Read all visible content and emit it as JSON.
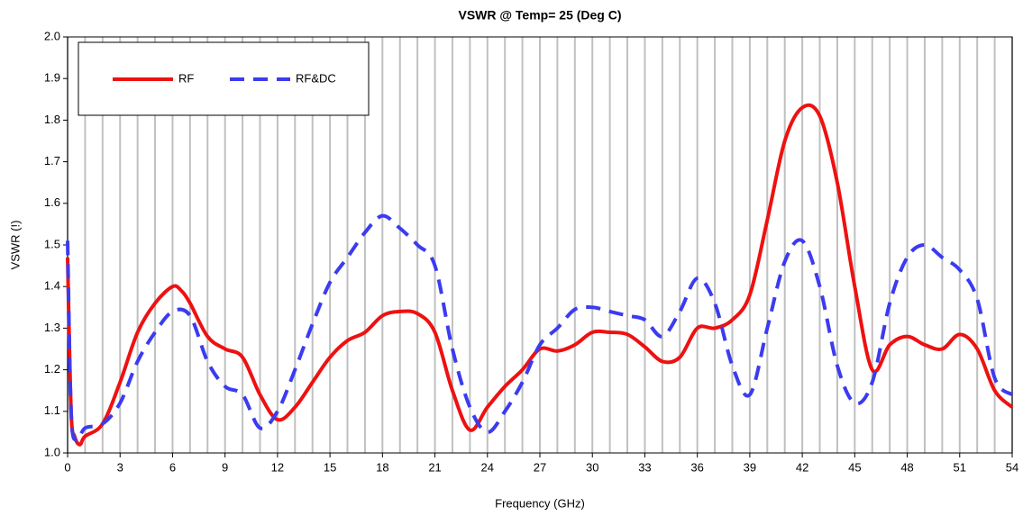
{
  "chart_data": {
    "type": "line",
    "title": "VSWR @ Temp= 25 (Deg C)",
    "x_label": "Frequency (GHz)",
    "y_label": "VSWR (!)",
    "xlim": [
      0,
      54
    ],
    "ylim": [
      1.0,
      2.0
    ],
    "xticks": [
      0,
      3,
      6,
      9,
      12,
      15,
      18,
      21,
      24,
      27,
      30,
      33,
      36,
      39,
      42,
      45,
      48,
      51,
      54
    ],
    "xgrid": [
      0,
      1,
      2,
      3,
      4,
      5,
      6,
      7,
      8,
      9,
      10,
      11,
      12,
      13,
      14,
      15,
      16,
      17,
      18,
      19,
      20,
      21,
      22,
      23,
      24,
      25,
      26,
      27,
      28,
      29,
      30,
      31,
      32,
      33,
      34,
      35,
      36,
      37,
      38,
      39,
      40,
      41,
      42,
      43,
      44,
      45,
      46,
      47,
      48,
      49,
      50,
      51,
      52,
      53,
      54
    ],
    "yticks": [
      {
        "value": 1.0,
        "label": "1.0"
      },
      1.1,
      1.2,
      1.3,
      1.4,
      1.5,
      1.6,
      1.7,
      1.8,
      1.9,
      {
        "value": 2.0,
        "label": "2.0"
      }
    ],
    "legend": "upper left",
    "series": [
      {
        "name": "RF",
        "color": "#ee1111",
        "dash": false,
        "x": [
          0,
          0.2,
          0.4,
          0.7,
          1,
          2,
          3,
          4,
          5,
          6,
          6.5,
          7,
          8,
          9,
          10,
          11,
          12,
          13,
          14,
          15,
          16,
          17,
          18,
          19,
          20,
          21,
          22,
          23,
          24,
          25,
          26,
          27,
          28,
          29,
          30,
          31,
          32,
          33,
          34,
          35,
          36,
          37,
          38,
          39,
          40,
          41,
          42,
          43,
          44,
          45,
          46,
          47,
          48,
          49,
          50,
          51,
          52,
          53,
          54
        ],
        "values": [
          1.47,
          1.1,
          1.04,
          1.02,
          1.04,
          1.07,
          1.17,
          1.29,
          1.36,
          1.4,
          1.39,
          1.36,
          1.28,
          1.25,
          1.23,
          1.14,
          1.08,
          1.11,
          1.17,
          1.23,
          1.27,
          1.29,
          1.33,
          1.34,
          1.335,
          1.29,
          1.15,
          1.055,
          1.11,
          1.16,
          1.2,
          1.25,
          1.245,
          1.26,
          1.29,
          1.29,
          1.285,
          1.255,
          1.22,
          1.23,
          1.3,
          1.3,
          1.32,
          1.38,
          1.56,
          1.75,
          1.83,
          1.81,
          1.65,
          1.4,
          1.2,
          1.26,
          1.28,
          1.26,
          1.25,
          1.285,
          1.25,
          1.15,
          1.11
        ]
      },
      {
        "name": "RF&DC",
        "color": "#3b3bf0",
        "dash": true,
        "x": [
          0,
          0.2,
          0.5,
          1,
          2,
          3,
          4,
          5,
          6,
          7,
          8,
          9,
          10,
          11,
          12,
          13,
          14,
          15,
          16,
          17,
          18,
          19,
          20,
          21,
          22,
          23,
          24,
          25,
          26,
          27,
          28,
          29,
          30,
          31,
          32,
          33,
          34,
          35,
          36,
          37,
          38,
          39,
          40,
          41,
          42,
          43,
          44,
          45,
          46,
          47,
          48,
          49,
          50,
          51,
          52,
          53,
          54
        ],
        "values": [
          1.51,
          1.1,
          1.03,
          1.06,
          1.07,
          1.12,
          1.22,
          1.29,
          1.34,
          1.33,
          1.22,
          1.16,
          1.14,
          1.06,
          1.1,
          1.2,
          1.31,
          1.41,
          1.47,
          1.53,
          1.57,
          1.54,
          1.5,
          1.45,
          1.25,
          1.11,
          1.05,
          1.1,
          1.17,
          1.26,
          1.3,
          1.345,
          1.35,
          1.34,
          1.33,
          1.32,
          1.28,
          1.34,
          1.42,
          1.36,
          1.21,
          1.14,
          1.3,
          1.46,
          1.51,
          1.4,
          1.21,
          1.12,
          1.17,
          1.36,
          1.47,
          1.5,
          1.47,
          1.44,
          1.37,
          1.18,
          1.14
        ]
      }
    ]
  }
}
